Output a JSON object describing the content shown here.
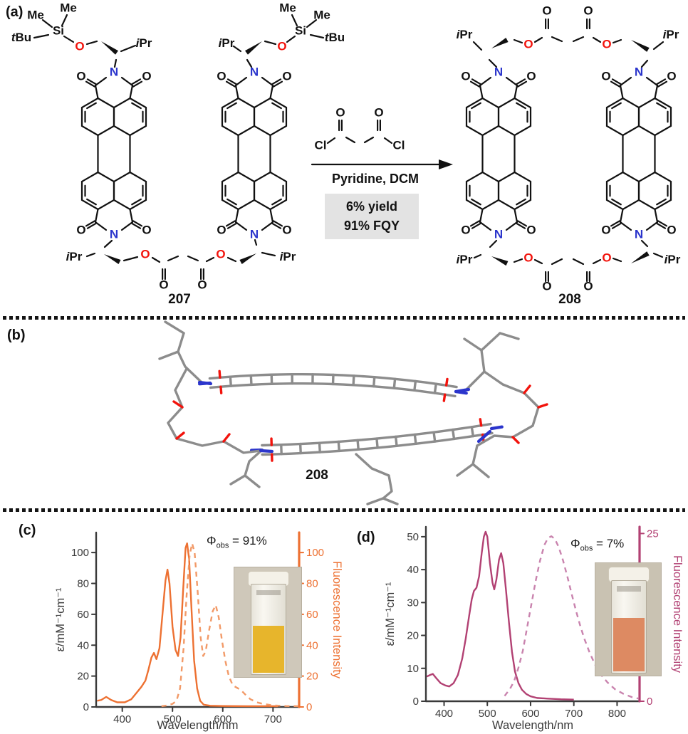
{
  "panels": {
    "a": "(a)",
    "b": "(b)",
    "c": "(c)",
    "d": "(d)"
  },
  "colors": {
    "bond_black": "#111111",
    "oxygen_red": "#F2130C",
    "nitrogen_blue": "#2B35CC",
    "model_gray": "#8C8C8C",
    "axis_dark": "#3A3A3A",
    "orange_accent": "#ED7132",
    "orange_emission": "#F29A68",
    "pink_accent": "#B24173",
    "pink_emission": "#C983AE",
    "yield_box_bg": "#E3E3E3",
    "sample_c_liquid": "#E7B52C",
    "sample_d_liquid": "#DD8A62"
  },
  "scheme": {
    "atoms": {
      "me": "Me",
      "si": "Si",
      "t": "t",
      "bu": "Bu",
      "i": "i",
      "pr": "Pr",
      "o": "O",
      "n": "N",
      "cl": "Cl"
    },
    "reactant_label": "207",
    "product_label": "208",
    "conditions": "Pyridine, DCM",
    "yield_text": "6% yield",
    "fqy_text": "91% FQY"
  },
  "model": {
    "compound_label": "208"
  },
  "chart_data": [
    {
      "type": "line",
      "panel": "c",
      "title": "",
      "xlabel": "Wavelength/nm",
      "ylabel_left": "ε/mM⁻¹cm⁻¹",
      "ylabel_right": "Fluorescence Intensity",
      "xlim": [
        348,
        752
      ],
      "ylim_left": [
        0,
        113
      ],
      "ylim_right": [
        0,
        113
      ],
      "x_ticks": [
        400,
        500,
        600,
        700
      ],
      "y_ticks_left": [
        0,
        20,
        40,
        60,
        80,
        100
      ],
      "y_ticks_right": [
        0,
        20,
        40,
        60,
        80,
        100
      ],
      "grid": false,
      "legend": "none",
      "annotation": {
        "symbol": "Φ",
        "subscript": "obs",
        "value": " = 91%"
      },
      "accent_color": "#ED7132",
      "series": [
        {
          "name": "absorption",
          "axis": "left",
          "style": "solid",
          "color": "#ED7132",
          "points": [
            [
              350,
              4
            ],
            [
              358,
              4.5
            ],
            [
              368,
              6.5
            ],
            [
              378,
              4.5
            ],
            [
              390,
              3
            ],
            [
              405,
              3
            ],
            [
              418,
              5
            ],
            [
              428,
              9
            ],
            [
              438,
              13
            ],
            [
              446,
              17
            ],
            [
              452,
              24
            ],
            [
              458,
              32
            ],
            [
              463,
              35
            ],
            [
              468,
              31
            ],
            [
              474,
              38
            ],
            [
              480,
              60
            ],
            [
              486,
              82
            ],
            [
              490,
              89
            ],
            [
              494,
              80
            ],
            [
              500,
              52
            ],
            [
              506,
              37
            ],
            [
              511,
              33
            ],
            [
              516,
              45
            ],
            [
              521,
              75
            ],
            [
              526,
              103
            ],
            [
              529,
              106
            ],
            [
              533,
              96
            ],
            [
              538,
              62
            ],
            [
              543,
              30
            ],
            [
              549,
              12
            ],
            [
              555,
              4
            ],
            [
              562,
              1.5
            ],
            [
              575,
              0.8
            ],
            [
              600,
              0.6
            ],
            [
              650,
              0.5
            ],
            [
              700,
              0.5
            ],
            [
              710,
              0.5
            ]
          ]
        },
        {
          "name": "emission",
          "axis": "right",
          "style": "dashed",
          "color": "#F29A68",
          "points": [
            [
              478,
              0.5
            ],
            [
              490,
              1
            ],
            [
              500,
              2
            ],
            [
              508,
              4
            ],
            [
              515,
              12
            ],
            [
              522,
              38
            ],
            [
              528,
              72
            ],
            [
              534,
              98
            ],
            [
              539,
              106
            ],
            [
              544,
              100
            ],
            [
              550,
              75
            ],
            [
              556,
              45
            ],
            [
              561,
              33
            ],
            [
              566,
              36
            ],
            [
              573,
              50
            ],
            [
              580,
              62
            ],
            [
              586,
              66
            ],
            [
              592,
              58
            ],
            [
              598,
              44
            ],
            [
              605,
              30
            ],
            [
              612,
              20
            ],
            [
              620,
              14
            ],
            [
              628,
              12.5
            ],
            [
              636,
              11
            ],
            [
              645,
              8
            ],
            [
              655,
              5
            ],
            [
              668,
              3
            ],
            [
              680,
              2
            ],
            [
              700,
              1
            ],
            [
              725,
              0.6
            ],
            [
              750,
              0.5
            ]
          ]
        }
      ]
    },
    {
      "type": "line",
      "panel": "d",
      "title": "",
      "xlabel": "Wavelength/nm",
      "ylabel_left": "ε/mM⁻¹cm⁻¹",
      "ylabel_right": "Fluorescence Intensity",
      "xlim": [
        358,
        852
      ],
      "ylim_left": [
        0,
        53
      ],
      "ylim_right": [
        0,
        26
      ],
      "x_ticks": [
        400,
        500,
        600,
        700,
        800
      ],
      "y_ticks_left": [
        0,
        10,
        20,
        30,
        40,
        50
      ],
      "y_ticks_right": [
        0,
        5,
        10,
        15,
        20,
        25
      ],
      "grid": false,
      "legend": "none",
      "annotation": {
        "symbol": "Φ",
        "subscript": "obs",
        "value": " = 7%"
      },
      "accent_color": "#B24173",
      "series": [
        {
          "name": "absorption",
          "axis": "left",
          "style": "solid",
          "color": "#B24173",
          "points": [
            [
              360,
              7.5
            ],
            [
              368,
              8
            ],
            [
              374,
              8.3
            ],
            [
              382,
              7
            ],
            [
              392,
              5.5
            ],
            [
              403,
              4.8
            ],
            [
              412,
              4.5
            ],
            [
              422,
              5.5
            ],
            [
              432,
              8
            ],
            [
              442,
              13
            ],
            [
              450,
              19
            ],
            [
              458,
              26
            ],
            [
              464,
              31
            ],
            [
              469,
              33.5
            ],
            [
              475,
              34.5
            ],
            [
              481,
              38
            ],
            [
              487,
              45
            ],
            [
              492,
              50
            ],
            [
              496,
              51.5
            ],
            [
              500,
              50
            ],
            [
              506,
              42
            ],
            [
              512,
              36
            ],
            [
              516,
              34
            ],
            [
              521,
              37
            ],
            [
              527,
              43
            ],
            [
              532,
              45
            ],
            [
              537,
              42
            ],
            [
              543,
              34
            ],
            [
              550,
              24
            ],
            [
              557,
              15
            ],
            [
              564,
              9
            ],
            [
              572,
              5.5
            ],
            [
              580,
              3.5
            ],
            [
              590,
              2.2
            ],
            [
              600,
              1.5
            ],
            [
              615,
              1
            ],
            [
              640,
              0.8
            ],
            [
              670,
              0.6
            ],
            [
              700,
              0.5
            ]
          ]
        },
        {
          "name": "emission",
          "axis": "right",
          "style": "dashed",
          "color": "#C983AE",
          "points": [
            [
              540,
              0.8
            ],
            [
              552,
              1.8
            ],
            [
              562,
              3
            ],
            [
              572,
              5
            ],
            [
              582,
              7.5
            ],
            [
              592,
              11
            ],
            [
              602,
              14.5
            ],
            [
              612,
              18
            ],
            [
              622,
              21
            ],
            [
              632,
              23.3
            ],
            [
              640,
              24.3
            ],
            [
              648,
              24.6
            ],
            [
              656,
              24.2
            ],
            [
              665,
              23
            ],
            [
              675,
              21
            ],
            [
              685,
              18.6
            ],
            [
              695,
              16
            ],
            [
              705,
              13.5
            ],
            [
              715,
              11.2
            ],
            [
              725,
              9.2
            ],
            [
              735,
              7.5
            ],
            [
              748,
              5.6
            ],
            [
              762,
              4
            ],
            [
              778,
              2.8
            ],
            [
              795,
              1.8
            ],
            [
              815,
              1.1
            ],
            [
              835,
              0.6
            ],
            [
              850,
              0.4
            ]
          ]
        }
      ]
    }
  ]
}
